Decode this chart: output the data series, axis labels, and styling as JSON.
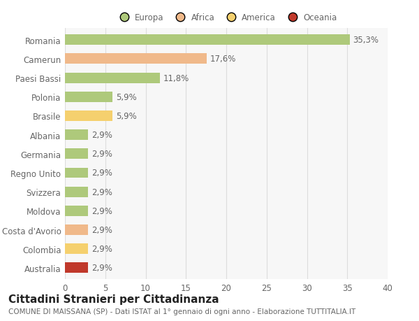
{
  "countries": [
    "Romania",
    "Camerun",
    "Paesi Bassi",
    "Polonia",
    "Brasile",
    "Albania",
    "Germania",
    "Regno Unito",
    "Svizzera",
    "Moldova",
    "Costa d'Avorio",
    "Colombia",
    "Australia"
  ],
  "values": [
    35.3,
    17.6,
    11.8,
    5.9,
    5.9,
    2.9,
    2.9,
    2.9,
    2.9,
    2.9,
    2.9,
    2.9,
    2.9
  ],
  "labels": [
    "35,3%",
    "17,6%",
    "11,8%",
    "5,9%",
    "5,9%",
    "2,9%",
    "2,9%",
    "2,9%",
    "2,9%",
    "2,9%",
    "2,9%",
    "2,9%",
    "2,9%"
  ],
  "colors": [
    "#aec97b",
    "#f0b98a",
    "#aec97b",
    "#aec97b",
    "#f5d06e",
    "#aec97b",
    "#aec97b",
    "#aec97b",
    "#aec97b",
    "#aec97b",
    "#f0b98a",
    "#f5d06e",
    "#c0392b"
  ],
  "legend_labels": [
    "Europa",
    "Africa",
    "America",
    "Oceania"
  ],
  "legend_colors": [
    "#aec97b",
    "#f0b98a",
    "#f5d06e",
    "#c0392b"
  ],
  "title": "Cittadini Stranieri per Cittadinanza",
  "subtitle": "COMUNE DI MAISSANA (SP) - Dati ISTAT al 1° gennaio di ogni anno - Elaborazione TUTTITALIA.IT",
  "xlim": [
    0,
    40
  ],
  "xticks": [
    0,
    5,
    10,
    15,
    20,
    25,
    30,
    35,
    40
  ],
  "bg_color": "#ffffff",
  "plot_bg_color": "#f7f7f7",
  "grid_color": "#dddddd",
  "bar_height": 0.55,
  "label_fontsize": 8.5,
  "tick_fontsize": 8.5,
  "title_fontsize": 11,
  "subtitle_fontsize": 7.5
}
